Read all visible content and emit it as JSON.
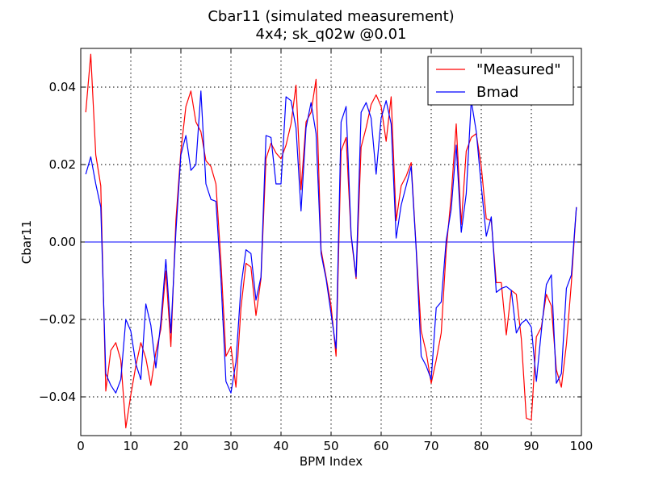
{
  "chart_data": {
    "type": "line",
    "title": "Cbar11 (simulated measurement)",
    "subtitle": "4x4; sk_q02w @0.01",
    "xlabel": "BPM Index",
    "ylabel": "Cbar11",
    "xlim": [
      0,
      100
    ],
    "ylim": [
      -0.05,
      0.05
    ],
    "xticks": [
      0,
      10,
      20,
      30,
      40,
      50,
      60,
      70,
      80,
      90,
      100
    ],
    "yticks": [
      -0.04,
      -0.02,
      0.0,
      0.02,
      0.04
    ],
    "xtick_labels": [
      "0",
      "10",
      "20",
      "30",
      "40",
      "50",
      "60",
      "70",
      "80",
      "90",
      "100"
    ],
    "ytick_labels": [
      "−0.04",
      "−0.02",
      "0.00",
      "0.02",
      "0.04"
    ],
    "grid": true,
    "legend_position": "top-right",
    "reference_line_y": 0.0,
    "x": [
      1,
      2,
      3,
      4,
      5,
      6,
      7,
      8,
      9,
      10,
      11,
      12,
      13,
      14,
      15,
      16,
      17,
      18,
      19,
      20,
      21,
      22,
      23,
      24,
      25,
      26,
      27,
      28,
      29,
      30,
      31,
      32,
      33,
      34,
      35,
      36,
      37,
      38,
      39,
      40,
      41,
      42,
      43,
      44,
      45,
      46,
      47,
      48,
      49,
      50,
      51,
      52,
      53,
      54,
      55,
      56,
      57,
      58,
      59,
      60,
      61,
      62,
      63,
      64,
      65,
      66,
      67,
      68,
      69,
      70,
      71,
      72,
      73,
      74,
      75,
      76,
      77,
      78,
      79,
      80,
      81,
      82,
      83,
      84,
      85,
      86,
      87,
      88,
      89,
      90,
      91,
      92,
      93,
      94,
      95,
      96,
      97,
      98,
      99
    ],
    "series": [
      {
        "name": "\"Measured\"",
        "color": "#ff0000",
        "values": [
          0.0335,
          0.0485,
          0.0225,
          0.0145,
          -0.0385,
          -0.028,
          -0.026,
          -0.0305,
          -0.048,
          -0.0395,
          -0.032,
          -0.026,
          -0.03,
          -0.037,
          -0.0285,
          -0.0225,
          -0.0075,
          -0.027,
          0.0055,
          0.0235,
          0.035,
          0.039,
          0.031,
          0.0285,
          0.021,
          0.0195,
          0.015,
          -0.005,
          -0.0295,
          -0.027,
          -0.0375,
          -0.017,
          -0.0055,
          -0.0065,
          -0.019,
          -0.0095,
          0.0215,
          0.0255,
          0.023,
          0.0215,
          0.025,
          0.0305,
          0.0405,
          0.0135,
          0.031,
          0.0335,
          0.042,
          -0.002,
          -0.009,
          -0.0165,
          -0.0295,
          0.0235,
          0.027,
          0.0015,
          -0.0095,
          0.0245,
          0.0295,
          0.0355,
          0.038,
          0.035,
          0.026,
          0.0375,
          0.0055,
          0.0145,
          0.017,
          0.0205,
          -0.0015,
          -0.023,
          -0.0285,
          -0.0365,
          -0.0305,
          -0.0235,
          -0.002,
          0.012,
          0.0305,
          0.0045,
          0.0235,
          0.027,
          0.028,
          0.0195,
          0.006,
          0.0055,
          -0.0105,
          -0.0105,
          -0.024,
          -0.0125,
          -0.0135,
          -0.025,
          -0.0455,
          -0.046,
          -0.0245,
          -0.022,
          -0.0135,
          -0.0165,
          -0.033,
          -0.0375,
          -0.0265,
          -0.0105,
          0.009
        ]
      },
      {
        "name": "Bmad",
        "color": "#0000ff",
        "values": [
          0.0175,
          0.022,
          0.015,
          0.009,
          -0.034,
          -0.037,
          -0.039,
          -0.0355,
          -0.02,
          -0.023,
          -0.0315,
          -0.0355,
          -0.016,
          -0.0215,
          -0.0325,
          -0.0205,
          -0.0045,
          -0.0235,
          0.0025,
          0.0225,
          0.0275,
          0.0185,
          0.02,
          0.039,
          0.015,
          0.011,
          0.0105,
          -0.0095,
          -0.036,
          -0.039,
          -0.031,
          -0.0115,
          -0.002,
          -0.003,
          -0.015,
          -0.009,
          0.0275,
          0.027,
          0.015,
          0.015,
          0.0375,
          0.0365,
          0.0295,
          0.008,
          0.0295,
          0.036,
          0.028,
          -0.003,
          -0.0095,
          -0.0185,
          -0.0275,
          0.031,
          0.035,
          0.002,
          -0.009,
          0.0335,
          0.036,
          0.032,
          0.0175,
          0.032,
          0.0365,
          0.0305,
          0.001,
          0.0095,
          0.0145,
          0.0195,
          -0.002,
          -0.0295,
          -0.032,
          -0.0355,
          -0.017,
          -0.0155,
          0.0005,
          0.0085,
          0.025,
          0.0025,
          0.0125,
          0.0365,
          0.0285,
          0.0145,
          0.0015,
          0.0065,
          -0.013,
          -0.012,
          -0.0115,
          -0.0125,
          -0.0235,
          -0.021,
          -0.02,
          -0.022,
          -0.036,
          -0.023,
          -0.011,
          -0.0085,
          -0.0365,
          -0.034,
          -0.012,
          -0.0085,
          0.009
        ]
      }
    ]
  }
}
